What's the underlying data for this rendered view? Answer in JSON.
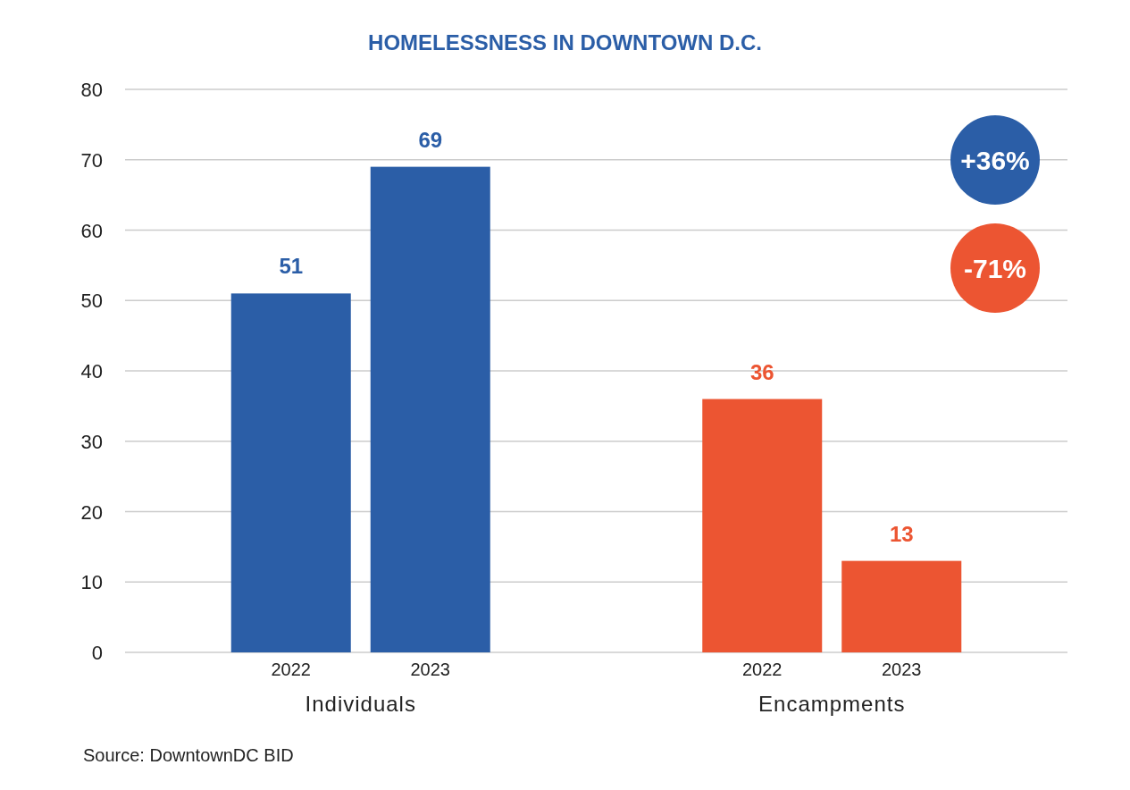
{
  "chart_data": {
    "type": "bar",
    "title": "HOMELESSNESS IN DOWNTOWN D.C.",
    "categories": [
      "2022",
      "2023",
      "2022",
      "2023"
    ],
    "series": [
      {
        "name": "Individuals",
        "color": "#2b5ea7",
        "values": [
          51,
          69,
          null,
          null
        ]
      },
      {
        "name": "Encampments",
        "color": "#ec5532",
        "values": [
          null,
          null,
          36,
          13
        ]
      }
    ],
    "ylim": [
      0,
      80
    ],
    "yticks": [
      0,
      10,
      20,
      30,
      40,
      50,
      60,
      70,
      80
    ],
    "grid": "y",
    "data_labels": true,
    "annotations": [
      "+36%",
      "-71%",
      "Source: DowntownDC BID"
    ]
  }
}
